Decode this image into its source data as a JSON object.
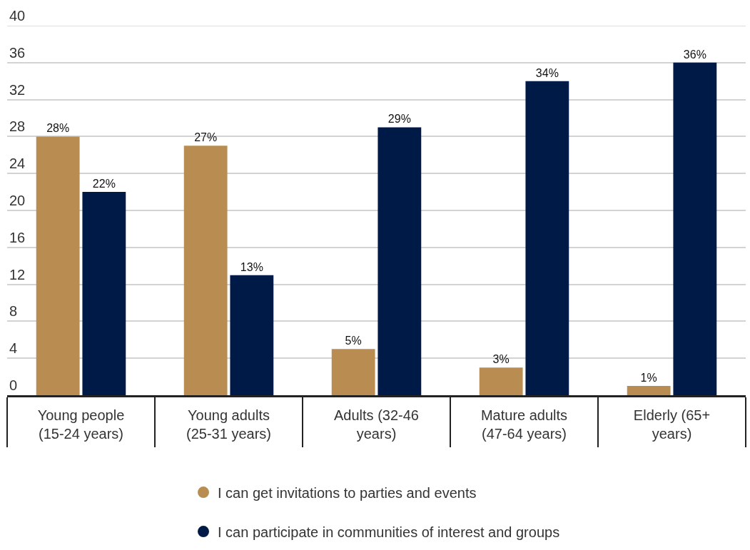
{
  "chart_data": {
    "type": "bar",
    "categories": [
      "Young people (15-24 years)",
      "Young adults (25-31 years)",
      "Adults (32-46 years)",
      "Mature adults (47-64 years)",
      "Elderly (65+ years)"
    ],
    "series": [
      {
        "name": "I can get invitations to parties and events",
        "color": "#b98c51",
        "values": [
          28,
          27,
          5,
          3,
          1
        ],
        "value_labels": [
          "28%",
          "27%",
          "5%",
          "3%",
          "1%"
        ]
      },
      {
        "name": "I can participate in communities of interest and groups",
        "color": "#001a48",
        "values": [
          22,
          13,
          29,
          34,
          36
        ],
        "value_labels": [
          "22%",
          "13%",
          "29%",
          "34%",
          "36%"
        ]
      }
    ],
    "ylim": [
      0,
      40
    ],
    "yticks": [
      0,
      4,
      8,
      12,
      16,
      20,
      24,
      28,
      32,
      36,
      40
    ],
    "grid": "y",
    "legend": "bottom"
  }
}
